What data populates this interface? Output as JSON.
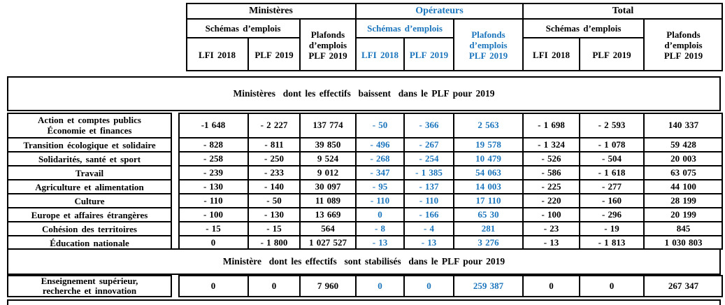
{
  "colors": {
    "accent_blue": "#1b75bc",
    "border": "#000000"
  },
  "header": {
    "ministeres": {
      "title": "Ministères",
      "schemas": "Schémas d’emplois",
      "plafonds": "Plafonds\nd’emplois\nPLF 2019",
      "lfi": "LFI 2018",
      "plf": "PLF 2019"
    },
    "operateurs": {
      "title": "Opérateurs",
      "schemas": "Schémas d’emplois",
      "plafonds": "Plafonds\nd’emplois\nPLF 2019",
      "lfi": "LFI 2018",
      "plf": "PLF 2019"
    },
    "total": {
      "title": "Total",
      "schemas": "Schémas d’emplois",
      "plafonds": "Plafonds\nd’emplois\nPLF 2019",
      "lfi": "LFI 2018",
      "plf": "PLF 2019"
    }
  },
  "sections": {
    "decreasing_title": "Ministères  dont les effectifs  baissent  dans le PLF pour 2019",
    "stabilized_title": "Ministère  dont les effectifs  sont stabilisés  dans le PLF pour 2019"
  },
  "rows": [
    {
      "label": "Action et comptes publics\nÉconomie et finances",
      "values": [
        "-1 648",
        "- 2 227",
        "137 774",
        "- 50",
        "- 366",
        "2 563",
        "- 1 698",
        "- 2 593",
        "140 337"
      ]
    },
    {
      "label": "Transition écologique et solidaire",
      "values": [
        "- 828",
        "- 811",
        "39 850",
        "- 496",
        "- 267",
        "19 578",
        "- 1 324",
        "- 1 078",
        "59 428"
      ]
    },
    {
      "label": "Solidarités, santé et sport",
      "values": [
        "- 258",
        "- 250",
        "9 524",
        "- 268",
        "- 254",
        "10 479",
        "- 526",
        "- 504",
        "20 003"
      ]
    },
    {
      "label": "Travail",
      "values": [
        "- 239",
        "- 233",
        "9 012",
        "- 347",
        "- 1 385",
        "54 063",
        "- 586",
        "- 1 618",
        "63 075"
      ]
    },
    {
      "label": "Agriculture et alimentation",
      "values": [
        "- 130",
        "- 140",
        "30 097",
        "- 95",
        "- 137",
        "14 003",
        "- 225",
        "- 277",
        "44 100"
      ]
    },
    {
      "label": "Culture",
      "values": [
        "- 110",
        "- 50",
        "11 089",
        "- 110",
        "- 110",
        "17 110",
        "- 220",
        "- 160",
        "28 199"
      ]
    },
    {
      "label": "Europe et affaires étrangères",
      "values": [
        "- 100",
        "- 130",
        "13 669",
        "0",
        "- 166",
        "65 30",
        "- 100",
        "- 296",
        "20 199"
      ]
    },
    {
      "label": "Cohésion des territoires",
      "values": [
        "- 15",
        "- 15",
        "564",
        "- 8",
        "- 4",
        "281",
        "- 23",
        "- 19",
        "845"
      ]
    },
    {
      "label": "Éducation nationale",
      "values": [
        "0",
        "- 1 800",
        "1 027 527",
        "- 13",
        "- 13",
        "3 276",
        "- 13",
        "- 1 813",
        "1 030 803"
      ]
    }
  ],
  "stabilized_row": {
    "label": "Enseignement supérieur,\nrecherche et innovation",
    "values": [
      "0",
      "0",
      "7 960",
      "0",
      "0",
      "259 387",
      "0",
      "0",
      "267 347"
    ]
  }
}
